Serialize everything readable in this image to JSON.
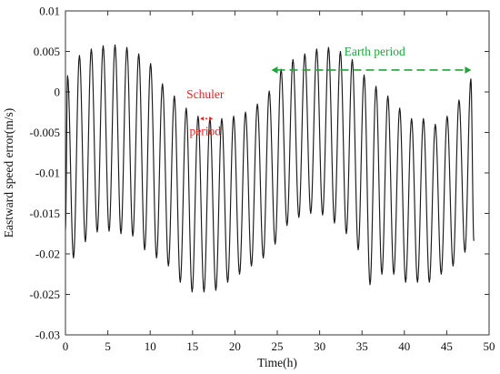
{
  "chart_data": {
    "type": "line",
    "title": "",
    "xlabel": "Time(h)",
    "ylabel": "Eastward speed error(m/s)",
    "xlim": [
      0,
      50
    ],
    "ylim": [
      -0.03,
      0.01
    ],
    "xticks": [
      0,
      5,
      10,
      15,
      20,
      25,
      30,
      35,
      40,
      45,
      50
    ],
    "yticks": [
      -0.03,
      -0.025,
      -0.02,
      -0.015,
      -0.01,
      -0.005,
      0,
      0.005,
      0.01
    ],
    "xtick_labels": [
      "0",
      "5",
      "10",
      "15",
      "20",
      "25",
      "30",
      "35",
      "40",
      "45",
      "50"
    ],
    "ytick_labels": [
      "-0.03",
      "-0.025",
      "-0.02",
      "-0.015",
      "-0.01",
      "-0.005",
      "0",
      "0.005",
      "0.01"
    ],
    "grid": false,
    "line_color": "#1a1a1a",
    "series": [
      {
        "x_start": 0,
        "x_end": 48.2,
        "schuler_period_h": 1.41,
        "maxima": [
          [
            0.25,
            0.002
          ],
          [
            1.65,
            0.0045
          ],
          [
            3.05,
            0.0053
          ],
          [
            4.45,
            0.0057
          ],
          [
            5.85,
            0.0058
          ],
          [
            7.25,
            0.0055
          ],
          [
            8.65,
            0.0047
          ],
          [
            10.05,
            0.0035
          ],
          [
            11.45,
            0.001
          ],
          [
            12.85,
            -0.0005
          ],
          [
            14.25,
            -0.002
          ],
          [
            15.65,
            -0.003
          ],
          [
            17.05,
            -0.0033
          ],
          [
            18.45,
            -0.0033
          ],
          [
            19.85,
            -0.003
          ],
          [
            21.25,
            -0.0025
          ],
          [
            22.65,
            -0.0015
          ],
          [
            24.05,
            0.0001
          ],
          [
            25.45,
            0.0028
          ],
          [
            26.85,
            0.004
          ],
          [
            28.25,
            0.0047
          ],
          [
            29.65,
            0.0053
          ],
          [
            31.05,
            0.0055
          ],
          [
            32.45,
            0.005
          ],
          [
            33.85,
            0.004
          ],
          [
            35.25,
            0.0021
          ],
          [
            36.65,
            0.0007
          ],
          [
            38.05,
            -0.0005
          ],
          [
            39.45,
            -0.002
          ],
          [
            40.85,
            -0.0033
          ],
          [
            42.25,
            -0.0033
          ],
          [
            43.65,
            -0.004
          ],
          [
            45.05,
            -0.003
          ],
          [
            46.45,
            -0.001
          ],
          [
            47.85,
            0.0016
          ]
        ],
        "minima": [
          [
            0.95,
            -0.0205
          ],
          [
            2.35,
            -0.0185
          ],
          [
            3.75,
            -0.0173
          ],
          [
            5.15,
            -0.0172
          ],
          [
            6.55,
            -0.0175
          ],
          [
            7.95,
            -0.0178
          ],
          [
            9.35,
            -0.0195
          ],
          [
            10.75,
            -0.0205
          ],
          [
            12.15,
            -0.0215
          ],
          [
            13.55,
            -0.0235
          ],
          [
            14.95,
            -0.0247
          ],
          [
            16.35,
            -0.0247
          ],
          [
            17.75,
            -0.0245
          ],
          [
            19.15,
            -0.0235
          ],
          [
            20.55,
            -0.0225
          ],
          [
            21.95,
            -0.0215
          ],
          [
            23.35,
            -0.0205
          ],
          [
            24.75,
            -0.0188
          ],
          [
            26.15,
            -0.0165
          ],
          [
            27.55,
            -0.0155
          ],
          [
            28.95,
            -0.015
          ],
          [
            30.35,
            -0.0152
          ],
          [
            31.75,
            -0.0162
          ],
          [
            33.15,
            -0.0175
          ],
          [
            34.55,
            -0.0195
          ],
          [
            35.95,
            -0.0238
          ],
          [
            37.35,
            -0.0225
          ],
          [
            38.75,
            -0.0225
          ],
          [
            40.15,
            -0.0235
          ],
          [
            41.55,
            -0.0235
          ],
          [
            42.95,
            -0.0235
          ],
          [
            44.35,
            -0.0225
          ],
          [
            45.75,
            -0.0215
          ],
          [
            47.15,
            -0.0198
          ]
        ],
        "end_value": -0.0184
      }
    ],
    "annotations": [
      {
        "name": "schuler",
        "text_lines": [
          "Schuler",
          "period"
        ],
        "color": "#e8221c",
        "x_from": 15.9,
        "x_to": 17.4,
        "y": -0.0033,
        "text_x": 16.5,
        "text_y1": -0.0008,
        "text_y2": -0.0042
      },
      {
        "name": "earth",
        "text": "Earth period",
        "color": "#22a33a",
        "x_from": 24.3,
        "x_to": 47.9,
        "y": 0.0027,
        "text_x": 36.5,
        "text_y": 0.0045
      }
    ]
  }
}
